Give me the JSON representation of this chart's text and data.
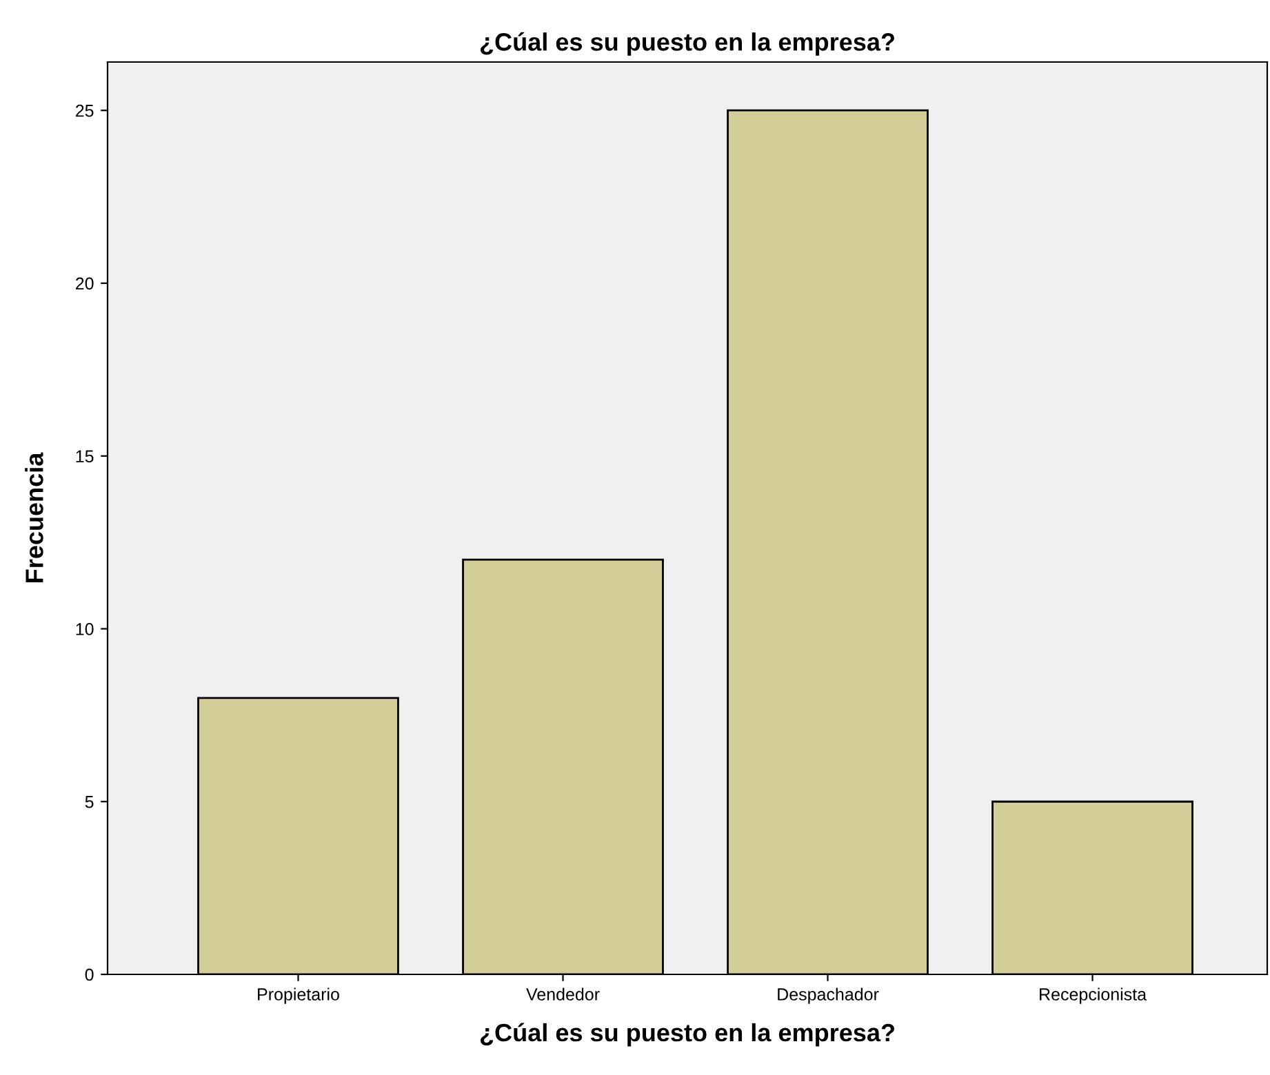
{
  "chart_data": {
    "type": "bar",
    "title": "¿Cúal es su puesto en la empresa?",
    "xlabel": "¿Cúal es su puesto en la empresa?",
    "ylabel": "Frecuencia",
    "categories": [
      "Propietario",
      "Vendedor",
      "Despachador",
      "Recepcionista"
    ],
    "values": [
      8,
      12,
      25,
      5
    ],
    "color": "#d3ce97",
    "ylim": [
      0,
      26.4
    ],
    "yticks": [
      0,
      5,
      10,
      15,
      20,
      25
    ],
    "grid": false,
    "legend": false
  }
}
